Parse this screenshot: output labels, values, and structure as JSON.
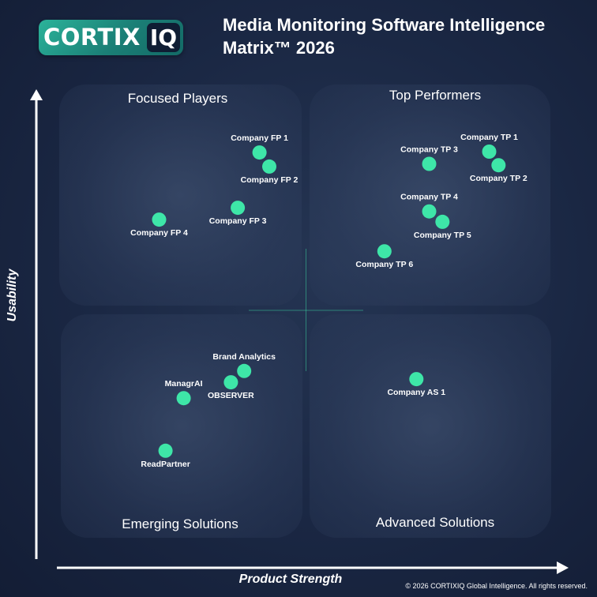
{
  "brand": {
    "logo_text": "CORTIX",
    "logo_badge": "IQ"
  },
  "header": {
    "title": "Media Monitoring Software Intelligence\nMatrix™ 2026"
  },
  "colors": {
    "background": "#1a2743",
    "point": "#3ee6a8",
    "logo_gradient_start": "#2bb39a",
    "logo_gradient_end": "#136a66"
  },
  "quadrants": {
    "top_left": "Focused Players",
    "top_right": "Top Performers",
    "bottom_left": "Emerging Solutions",
    "bottom_right": "Advanced Solutions"
  },
  "footer": {
    "copyright": "© 2026 CORTIXIQ Global Intelligence. All rights reserved."
  },
  "chart_data": {
    "type": "scatter",
    "title": "Media Monitoring Software Intelligence Matrix™ 2026",
    "xlabel": "Product Strength",
    "ylabel": "Usability",
    "xlim": [
      0,
      100
    ],
    "ylim": [
      0,
      100
    ],
    "grid": false,
    "quadrant_divider": {
      "x": 50,
      "y": 50
    },
    "points": [
      {
        "label": "Company FP 1",
        "x": 40.7,
        "y": 85.0,
        "label_pos": "above"
      },
      {
        "label": "Company FP 2",
        "x": 42.7,
        "y": 81.9,
        "label_pos": "below"
      },
      {
        "label": "Company FP 3",
        "x": 36.3,
        "y": 72.8,
        "label_pos": "below"
      },
      {
        "label": "Company FP 4",
        "x": 20.3,
        "y": 70.2,
        "label_pos": "below"
      },
      {
        "label": "Company TP 1",
        "x": 87.4,
        "y": 85.2,
        "label_pos": "above"
      },
      {
        "label": "Company TP 2",
        "x": 89.3,
        "y": 82.2,
        "label_pos": "below"
      },
      {
        "label": "Company TP 3",
        "x": 75.2,
        "y": 82.5,
        "label_pos": "above"
      },
      {
        "label": "Company TP 4",
        "x": 75.2,
        "y": 72.0,
        "label_pos": "above"
      },
      {
        "label": "Company TP 5",
        "x": 77.9,
        "y": 69.7,
        "label_pos": "below"
      },
      {
        "label": "Company TP 6",
        "x": 66.1,
        "y": 63.2,
        "label_pos": "below"
      },
      {
        "label": "Brand Analytics",
        "x": 37.6,
        "y": 36.8,
        "label_pos": "above"
      },
      {
        "label": "OBSERVER",
        "x": 34.9,
        "y": 34.3,
        "label_pos": "below"
      },
      {
        "label": "ManagrAI",
        "x": 25.3,
        "y": 30.8,
        "label_pos": "above"
      },
      {
        "label": "ReadPartner",
        "x": 21.6,
        "y": 19.2,
        "label_pos": "below"
      },
      {
        "label": "Company AS 1",
        "x": 72.6,
        "y": 35.0,
        "label_pos": "below"
      }
    ]
  }
}
